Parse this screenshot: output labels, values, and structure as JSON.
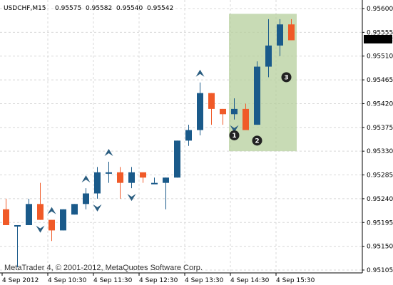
{
  "header": {
    "symbol": "USDCHF,M15",
    "open": "0.95575",
    "high": "0.95582",
    "low": "0.95540",
    "close": "0.95542"
  },
  "watermark": "MetaTrader 4, © 2001-2012, MetaQuotes Software Corp.",
  "colors": {
    "bull": "#1a5a8a",
    "bear": "#f05a28",
    "highlight": "#b5cf9c",
    "grid": "#d8d8d8",
    "arrow": "#2a5d80",
    "marker": "#222222",
    "current_price_bg": "#000000"
  },
  "chart_data": {
    "type": "candlestick",
    "instrument": "USDCHF",
    "timeframe": "M15",
    "ylim": [
      0.951,
      0.956
    ],
    "y_ticks": [
      "0.95600",
      "0.95555",
      "0.95510",
      "0.95465",
      "0.95420",
      "0.95375",
      "0.95330",
      "0.95285",
      "0.95240",
      "0.95195",
      "0.95150",
      "0.95105"
    ],
    "current_price": "0.95542",
    "x_labels": [
      "4 Sep 2012",
      "4 Sep 10:30",
      "4 Sep 11:30",
      "4 Sep 12:30",
      "4 Sep 13:30",
      "4 Sep 14:30",
      "4 Sep 15:30"
    ],
    "candles": [
      {
        "open": 0.9522,
        "high": 0.9524,
        "low": 0.9519,
        "close": 0.9519
      },
      {
        "open": 0.9519,
        "high": 0.9519,
        "low": 0.9511,
        "close": 0.9519
      },
      {
        "open": 0.9519,
        "high": 0.9524,
        "low": 0.9519,
        "close": 0.9523
      },
      {
        "open": 0.9523,
        "high": 0.9527,
        "low": 0.952,
        "close": 0.952
      },
      {
        "open": 0.952,
        "high": 0.952,
        "low": 0.9516,
        "close": 0.9518
      },
      {
        "open": 0.9518,
        "high": 0.9522,
        "low": 0.9518,
        "close": 0.9522
      },
      {
        "open": 0.9521,
        "high": 0.9523,
        "low": 0.9521,
        "close": 0.9523
      },
      {
        "open": 0.9523,
        "high": 0.9526,
        "low": 0.9522,
        "close": 0.9525
      },
      {
        "open": 0.9525,
        "high": 0.953,
        "low": 0.9524,
        "close": 0.9529
      },
      {
        "open": 0.9529,
        "high": 0.9531,
        "low": 0.9527,
        "close": 0.9529
      },
      {
        "open": 0.9529,
        "high": 0.953,
        "low": 0.9524,
        "close": 0.9527
      },
      {
        "open": 0.9527,
        "high": 0.953,
        "low": 0.9526,
        "close": 0.9529
      },
      {
        "open": 0.9529,
        "high": 0.9529,
        "low": 0.9527,
        "close": 0.9528
      },
      {
        "open": 0.9527,
        "high": 0.9528,
        "low": 0.9527,
        "close": 0.9527
      },
      {
        "open": 0.9527,
        "high": 0.9528,
        "low": 0.9522,
        "close": 0.9528
      },
      {
        "open": 0.9528,
        "high": 0.9535,
        "low": 0.9528,
        "close": 0.9535
      },
      {
        "open": 0.9535,
        "high": 0.9538,
        "low": 0.9534,
        "close": 0.9537
      },
      {
        "open": 0.9537,
        "high": 0.9546,
        "low": 0.9536,
        "close": 0.9544
      },
      {
        "open": 0.9544,
        "high": 0.9544,
        "low": 0.9538,
        "close": 0.9541
      },
      {
        "open": 0.9541,
        "high": 0.9541,
        "low": 0.9538,
        "close": 0.954
      },
      {
        "open": 0.954,
        "high": 0.9543,
        "low": 0.9539,
        "close": 0.9541
      },
      {
        "open": 0.9541,
        "high": 0.9542,
        "low": 0.9537,
        "close": 0.9537
      },
      {
        "open": 0.9538,
        "high": 0.955,
        "low": 0.9538,
        "close": 0.9549
      },
      {
        "open": 0.9549,
        "high": 0.9558,
        "low": 0.9547,
        "close": 0.9553
      },
      {
        "open": 0.9553,
        "high": 0.9558,
        "low": 0.9551,
        "close": 0.9557
      },
      {
        "open": 0.9557,
        "high": 0.9558,
        "low": 0.9554,
        "close": 0.9554
      }
    ],
    "up_fractals": [
      4,
      7,
      9,
      17
    ],
    "down_fractals": [
      3,
      8,
      11,
      20
    ],
    "highlight_range": {
      "from_candle": 20,
      "to_candle": 25,
      "price_low": 0.9533,
      "price_high": 0.9559
    },
    "annotations": [
      {
        "label": "1",
        "candle": 20,
        "price": 0.9536
      },
      {
        "label": "2",
        "candle": 22,
        "price": 0.9535
      },
      {
        "label": "3",
        "candle": 24,
        "price": 0.9547
      }
    ]
  }
}
